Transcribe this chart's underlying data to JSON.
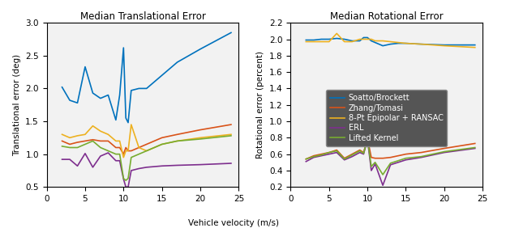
{
  "title1": "Median Translational Error",
  "title2": "Median Rotational Error",
  "xlabel": "Vehicle velocity (m/s)",
  "ylabel1": "Translational error (deg)",
  "ylabel2": "Rotational error (percent)",
  "legend_labels": [
    "Soatto/Brockett",
    "Zhang/Tomasi",
    "8-Pt Epipolar + RANSAC",
    "ERL",
    "Lifted Kernel"
  ],
  "colors": [
    "#0072BD",
    "#D95319",
    "#EDB120",
    "#7E2F8E",
    "#77AC30"
  ],
  "xlim": [
    0,
    25
  ],
  "ylim1": [
    0.5,
    3.0
  ],
  "ylim2": [
    0.2,
    2.2
  ],
  "x_trans": [
    2,
    3,
    4,
    5,
    6,
    7,
    8,
    9,
    9.5,
    10,
    10.3,
    10.6,
    11,
    12,
    13,
    14,
    15,
    17,
    20,
    24
  ],
  "soatto_trans": [
    2.02,
    1.82,
    1.78,
    2.33,
    1.93,
    1.85,
    1.9,
    1.52,
    1.9,
    2.62,
    1.55,
    1.48,
    1.97,
    2.0,
    2.0,
    2.1,
    2.2,
    2.4,
    2.6,
    2.85
  ],
  "zhang_trans": [
    1.2,
    1.15,
    1.18,
    1.2,
    1.22,
    1.2,
    1.2,
    1.1,
    1.1,
    1.0,
    1.1,
    1.05,
    1.05,
    1.1,
    1.15,
    1.2,
    1.25,
    1.3,
    1.37,
    1.45
  ],
  "epipolar_trans": [
    1.3,
    1.25,
    1.28,
    1.3,
    1.43,
    1.35,
    1.3,
    1.2,
    1.2,
    0.95,
    1.05,
    1.05,
    1.45,
    1.1,
    1.05,
    1.1,
    1.15,
    1.2,
    1.25,
    1.3
  ],
  "erl_trans": [
    0.92,
    0.92,
    0.82,
    1.01,
    0.8,
    0.97,
    1.02,
    0.9,
    0.9,
    0.62,
    0.5,
    0.5,
    0.75,
    0.78,
    0.8,
    0.81,
    0.82,
    0.83,
    0.84,
    0.86
  ],
  "lifted_trans": [
    1.12,
    1.1,
    1.1,
    1.15,
    1.2,
    1.1,
    1.05,
    1.0,
    1.0,
    0.63,
    0.6,
    0.63,
    0.95,
    1.0,
    1.05,
    1.1,
    1.15,
    1.2,
    1.23,
    1.28
  ],
  "x_rot": [
    2,
    3,
    4,
    5,
    6,
    7,
    8,
    9,
    9.5,
    10,
    10.5,
    11,
    12,
    13,
    14,
    15,
    17,
    20,
    24
  ],
  "soatto_rot": [
    1.99,
    1.99,
    2.0,
    2.0,
    2.01,
    2.0,
    1.98,
    1.98,
    2.02,
    2.02,
    1.98,
    1.96,
    1.92,
    1.94,
    1.95,
    1.95,
    1.94,
    1.93,
    1.93
  ],
  "zhang_rot": [
    0.54,
    0.58,
    0.6,
    0.62,
    0.65,
    0.55,
    0.6,
    0.65,
    0.62,
    0.79,
    0.56,
    0.55,
    0.55,
    0.56,
    0.58,
    0.6,
    0.62,
    0.67,
    0.73
  ],
  "epipolar_rot": [
    1.97,
    1.97,
    1.97,
    1.97,
    2.07,
    1.97,
    1.97,
    2.0,
    2.0,
    2.0,
    2.0,
    1.98,
    1.98,
    1.97,
    1.96,
    1.95,
    1.94,
    1.92,
    1.9
  ],
  "erl_rot": [
    0.51,
    0.56,
    0.58,
    0.6,
    0.62,
    0.53,
    0.57,
    0.62,
    0.6,
    0.78,
    0.4,
    0.48,
    0.22,
    0.47,
    0.5,
    0.53,
    0.56,
    0.62,
    0.67
  ],
  "lifted_rot": [
    0.54,
    0.57,
    0.59,
    0.62,
    0.64,
    0.54,
    0.59,
    0.64,
    0.61,
    0.79,
    0.45,
    0.5,
    0.35,
    0.49,
    0.52,
    0.55,
    0.57,
    0.63,
    0.68
  ],
  "bg_color": "#f2f2f2",
  "legend_bg": "#555555",
  "legend_text_color": "white"
}
